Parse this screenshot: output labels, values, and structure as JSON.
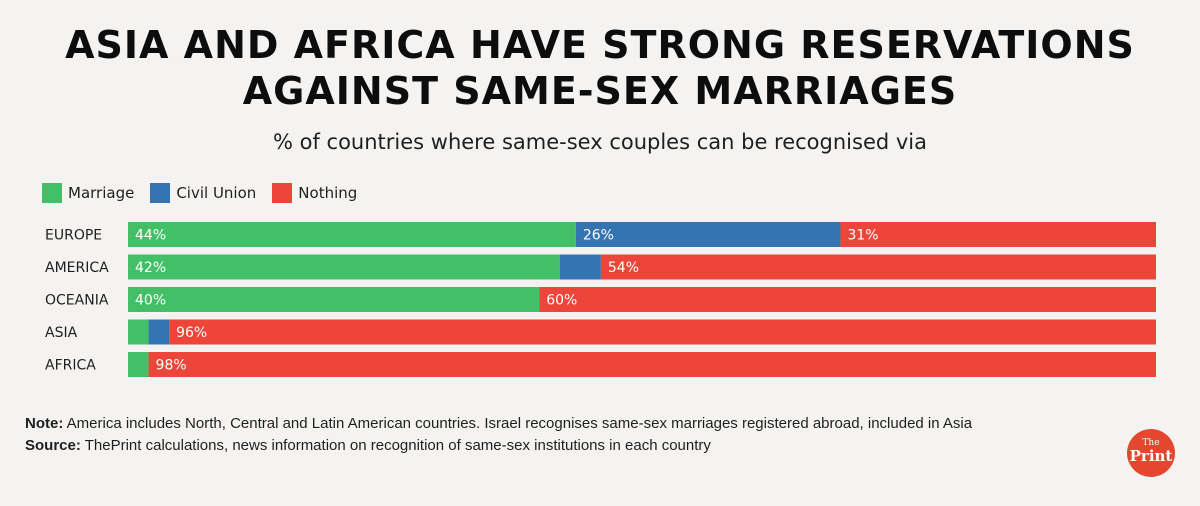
{
  "header": {
    "title_line1": "ASIA AND AFRICA HAVE STRONG RESERVATIONS",
    "title_line2": "AGAINST SAME-SEX MARRIAGES",
    "subtitle": "% of countries where same-sex couples can be recognised via"
  },
  "colors": {
    "marriage": "#43bf67",
    "civil_union": "#3574b3",
    "nothing": "#eb4639"
  },
  "chart_data": {
    "type": "bar",
    "orientation": "horizontal",
    "stacked": true,
    "categories": [
      "EUROPE",
      "AMERICA",
      "OCEANIA",
      "ASIA",
      "AFRICA"
    ],
    "series": [
      {
        "name": "Marriage",
        "values": [
          44,
          42,
          40,
          2,
          2
        ],
        "labels": [
          "44%",
          "42%",
          "40%",
          "",
          ""
        ]
      },
      {
        "name": "Civil Union",
        "values": [
          26,
          4,
          0,
          2,
          0
        ],
        "labels": [
          "26%",
          "",
          "",
          "",
          ""
        ]
      },
      {
        "name": "Nothing",
        "values": [
          31,
          54,
          60,
          96,
          98
        ],
        "labels": [
          "31%",
          "54%",
          "60%",
          "96%",
          "98%"
        ]
      }
    ],
    "xlim": [
      0,
      100
    ],
    "legend_position": "top-left",
    "grid": false
  },
  "footer": {
    "note_label": "Note:",
    "note_text": " America includes North, Central and Latin American countries. Israel recognises same-sex marriages registered abroad, included in Asia",
    "source_label": "Source:",
    "source_text": " ThePrint calculations, news information on recognition of same-sex institutions in each country"
  },
  "logo": {
    "line1": "The",
    "line2": "Print"
  }
}
